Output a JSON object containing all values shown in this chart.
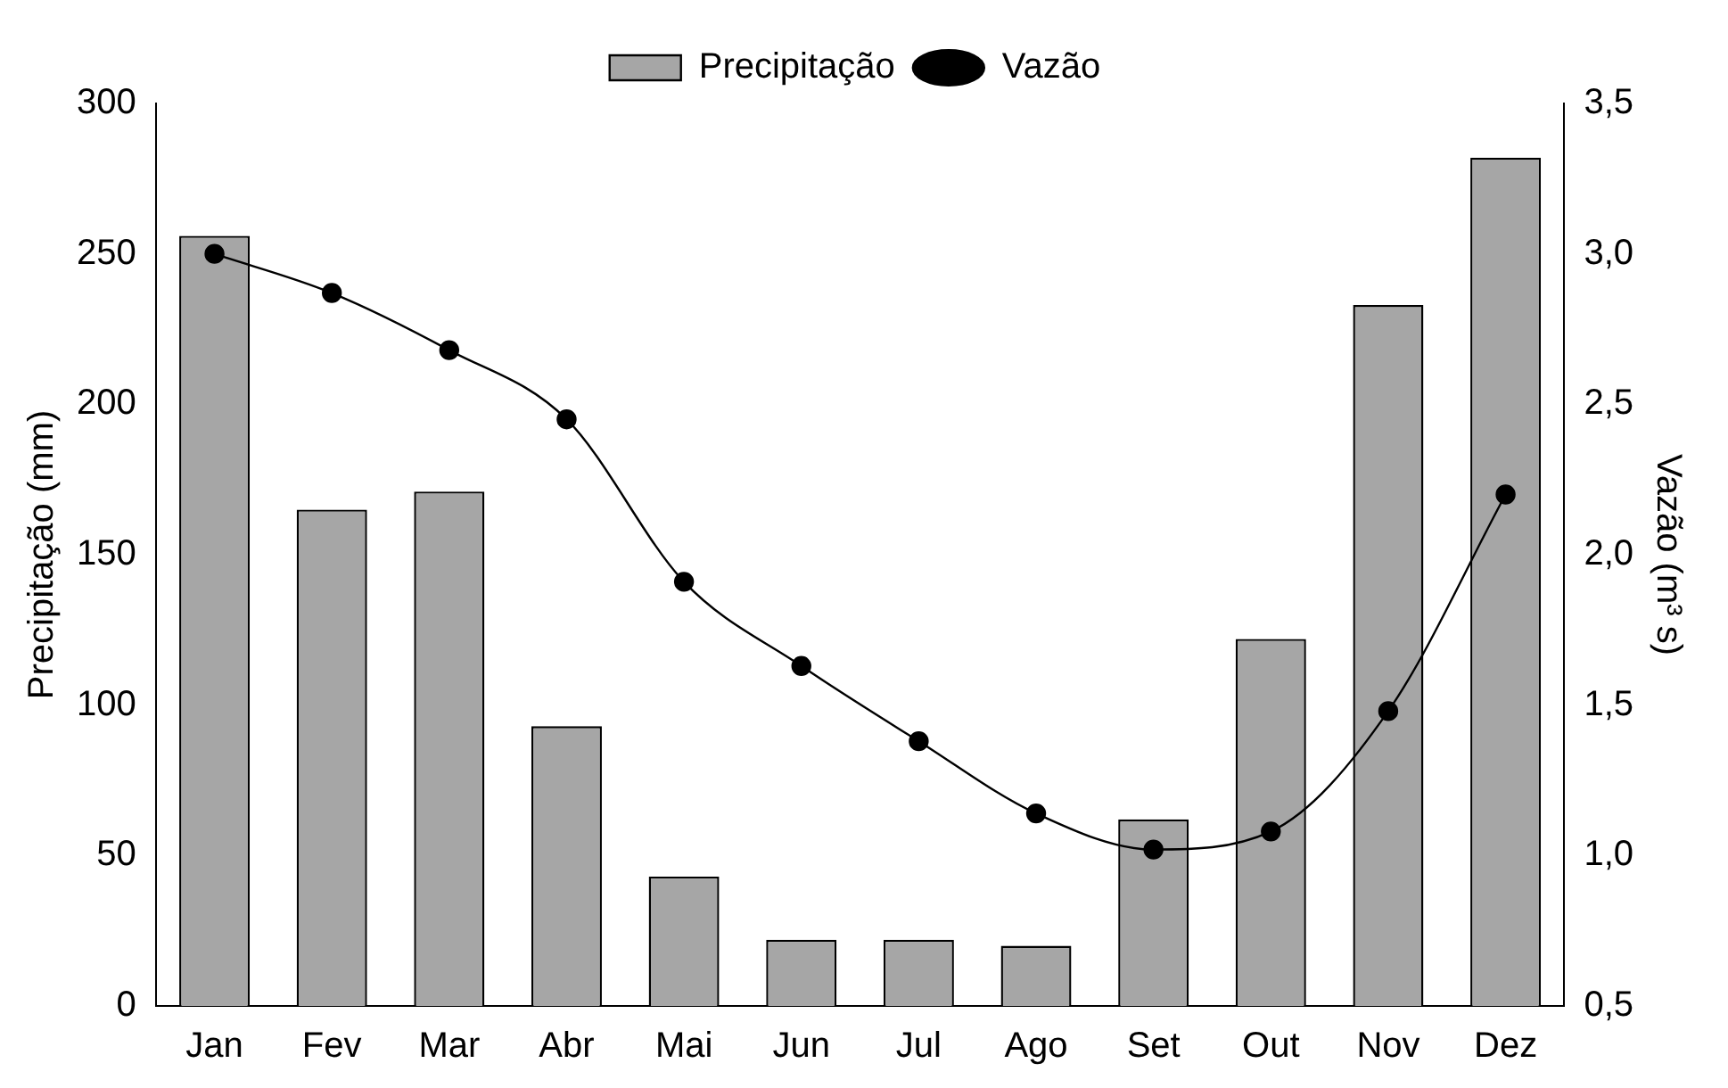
{
  "chart_data": {
    "type": "bar",
    "categories": [
      "Jan",
      "Fev",
      "Mar",
      "Abr",
      "Mai",
      "Jun",
      "Jul",
      "Ago",
      "Set",
      "Out",
      "Nov",
      "Dez"
    ],
    "series": [
      {
        "name": "Precipitação",
        "color": "#a6a6a6",
        "values": [
          256,
          165,
          171,
          93,
          43,
          22,
          22,
          20,
          62,
          122,
          233,
          282
        ]
      },
      {
        "name": "Vazão",
        "type": "line",
        "axis": "y2",
        "color": "#000000",
        "marker": "circle",
        "values": [
          3.0,
          2.87,
          2.68,
          2.45,
          1.91,
          1.63,
          1.38,
          1.14,
          1.02,
          1.08,
          1.48,
          2.2
        ]
      }
    ],
    "ylabel": "Precipitação (mm)",
    "y2label": "Vazão (m³ s)",
    "ylim": [
      0,
      300
    ],
    "yticks": [
      0,
      50,
      100,
      150,
      200,
      250,
      300
    ],
    "y2lim": [
      0.5,
      3.5
    ],
    "y2ticks": [
      {
        "value": 0.5,
        "label": "0,5"
      },
      {
        "value": 1,
        "label": "1,0"
      },
      {
        "value": 1.5,
        "label": "1,5"
      },
      {
        "value": 2,
        "label": "2,0"
      },
      {
        "value": 2.5,
        "label": "2,5"
      },
      {
        "value": 3,
        "label": "3,0"
      },
      {
        "value": 3.5,
        "label": "3,5"
      }
    ],
    "legend": "top",
    "grid": false
  }
}
